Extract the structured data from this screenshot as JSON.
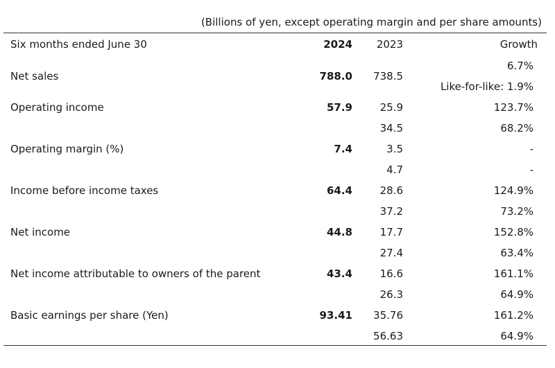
{
  "note": "(Billions of yen, except operating margin and per share amounts)",
  "header": {
    "period": "Six months ended June 30",
    "current_year": "2024",
    "prior_year": "2023",
    "growth": "Growth"
  },
  "rows": [
    {
      "label": "Net sales",
      "current": "788.0",
      "prior": "738.5",
      "growth": "6.7%"
    },
    {
      "growth_note": "Like-for-like: 1.9%"
    },
    {
      "label": "Operating income",
      "current": "57.9",
      "prior": "25.9",
      "growth": "123.7%"
    },
    {
      "prior": "34.5",
      "growth": "68.2%"
    },
    {
      "label": "Operating margin (%)",
      "current": "7.4",
      "prior": "3.5",
      "growth": "-"
    },
    {
      "prior": "4.7",
      "growth": "-"
    },
    {
      "label": "Income before income taxes",
      "current": "64.4",
      "prior": "28.6",
      "growth": "124.9%"
    },
    {
      "prior": "37.2",
      "growth": "73.2%"
    },
    {
      "label": "Net income",
      "current": "44.8",
      "prior": "17.7",
      "growth": "152.8%"
    },
    {
      "prior": "27.4",
      "growth": "63.4%"
    },
    {
      "label": "Net income attributable to owners of the parent",
      "current": "43.4",
      "prior": "16.6",
      "growth": "161.1%"
    },
    {
      "prior": "26.3",
      "growth": "64.9%"
    },
    {
      "label": "Basic earnings per share (Yen)",
      "current": "93.41",
      "prior": "35.76",
      "growth": "161.2%"
    },
    {
      "prior": "56.63",
      "growth": "64.9%"
    }
  ]
}
